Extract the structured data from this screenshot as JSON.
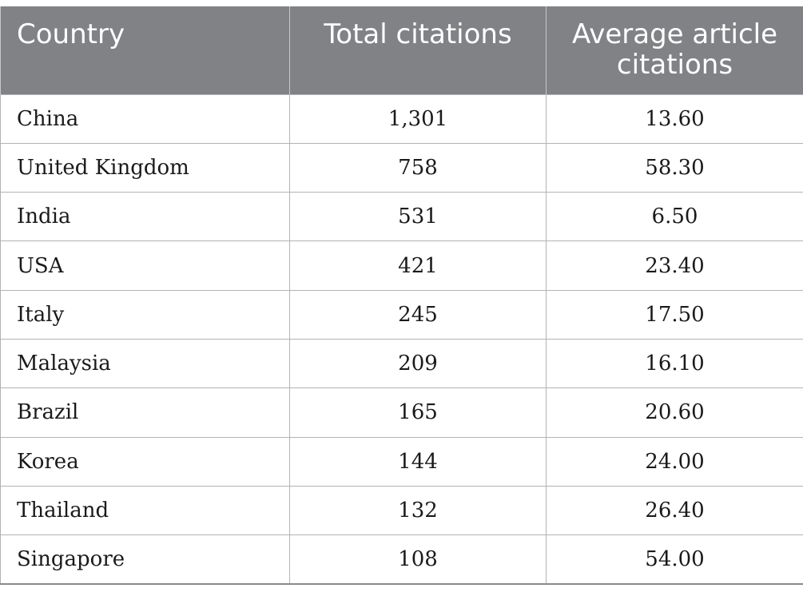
{
  "table": {
    "headers": [
      "Country",
      "Total citations",
      "Average article citations"
    ],
    "rows": [
      {
        "country": "China",
        "total": "1,301",
        "average": "13.60"
      },
      {
        "country": "United Kingdom",
        "total": "758",
        "average": "58.30"
      },
      {
        "country": "India",
        "total": "531",
        "average": "6.50"
      },
      {
        "country": "USA",
        "total": "421",
        "average": "23.40"
      },
      {
        "country": "Italy",
        "total": "245",
        "average": "17.50"
      },
      {
        "country": "Malaysia",
        "total": "209",
        "average": "16.10"
      },
      {
        "country": "Brazil",
        "total": "165",
        "average": "20.60"
      },
      {
        "country": "Korea",
        "total": "144",
        "average": "24.00"
      },
      {
        "country": "Thailand",
        "total": "132",
        "average": "26.40"
      },
      {
        "country": "Singapore",
        "total": "108",
        "average": "54.00"
      }
    ]
  },
  "colors": {
    "header_bg": "#808285",
    "header_text": "#ffffff",
    "grid": "#b3b3b3"
  }
}
